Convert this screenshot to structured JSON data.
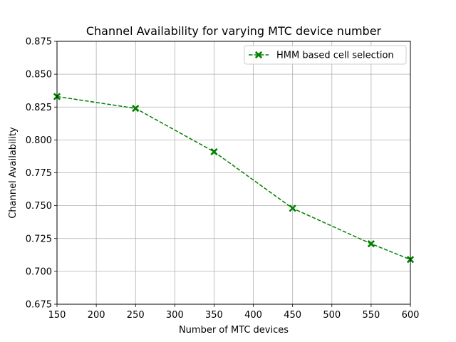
{
  "chart_data": {
    "type": "line",
    "title": "Channel Availability for varying MTC device number",
    "xlabel": "Number of MTC devices",
    "ylabel": "Channel Availability",
    "xlim": [
      150,
      600
    ],
    "ylim": [
      0.675,
      0.875
    ],
    "x_ticks": [
      "150",
      "200",
      "250",
      "300",
      "350",
      "400",
      "450",
      "500",
      "550",
      "600"
    ],
    "y_ticks": [
      "0.675",
      "0.700",
      "0.725",
      "0.750",
      "0.775",
      "0.800",
      "0.825",
      "0.850",
      "0.875"
    ],
    "grid": true,
    "legend_position": "top-right",
    "series": [
      {
        "name": "HMM based cell selection",
        "color": "#008000",
        "line_style": "dashed",
        "marker": "x-filled",
        "x": [
          150,
          250,
          350,
          450,
          550,
          600
        ],
        "y": [
          0.833,
          0.824,
          0.791,
          0.748,
          0.721,
          0.709
        ]
      }
    ]
  }
}
